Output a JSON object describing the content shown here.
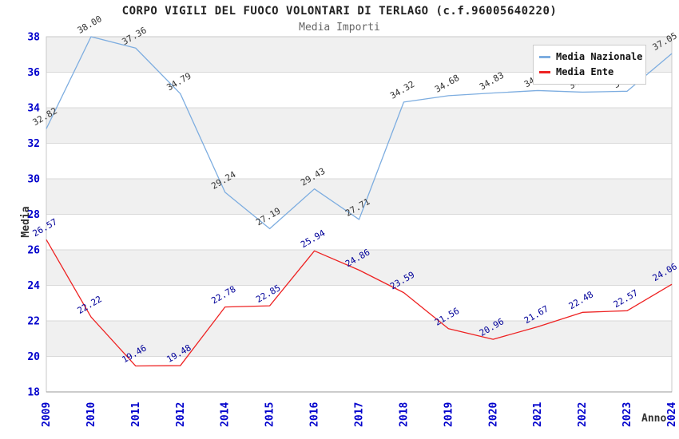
{
  "chart_data": {
    "type": "line",
    "title": "CORPO VIGILI DEL FUOCO VOLONTARI DI TERLAGO (c.f.96005640220)",
    "subtitle": "Media Importi",
    "xlabel": "Anno",
    "ylabel": "Media",
    "categories": [
      "2009",
      "2010",
      "2011",
      "2012",
      "2014",
      "2015",
      "2016",
      "2017",
      "2018",
      "2019",
      "2020",
      "2021",
      "2022",
      "2023",
      "2024"
    ],
    "series": [
      {
        "name": "Media Nazionale",
        "color": "#7dade0",
        "label_color": "#333333",
        "values": [
          32.82,
          38.0,
          37.36,
          34.79,
          29.24,
          27.19,
          29.43,
          27.71,
          34.32,
          34.68,
          34.83,
          34.97,
          34.88,
          34.93,
          37.05
        ]
      },
      {
        "name": "Media Ente",
        "color": "#ee2222",
        "label_color": "#000099",
        "values": [
          26.57,
          22.22,
          19.46,
          19.48,
          22.78,
          22.85,
          25.94,
          24.86,
          23.59,
          21.56,
          20.96,
          21.67,
          22.48,
          22.57,
          24.06
        ]
      }
    ],
    "ylim": [
      18,
      38
    ],
    "ytick_step": 2,
    "grid": true,
    "legend_position": "top-right",
    "colors": {
      "tick_label": "#0000cc",
      "band_fill": "#f0f0f0",
      "gridline": "#d9d9d9",
      "plot_border": "#c9c9c9",
      "axis_line": "#999999"
    }
  }
}
